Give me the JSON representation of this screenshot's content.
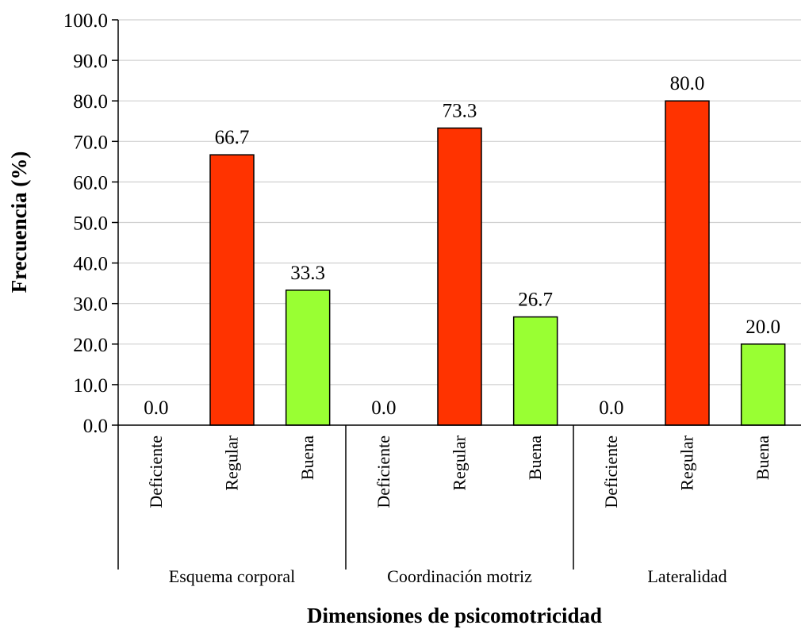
{
  "chart_data": {
    "type": "bar",
    "xlabel": "Dimensiones de psicomotricidad",
    "ylabel": "Frecuencia (%)",
    "ylim": [
      0,
      100
    ],
    "yticks": [
      "0.0",
      "10.0",
      "20.0",
      "30.0",
      "40.0",
      "50.0",
      "60.0",
      "70.0",
      "80.0",
      "90.0",
      "100.0"
    ],
    "grid": "horizontal",
    "legend": "none",
    "groups": [
      {
        "name": "Esquema corporal",
        "categories": [
          "Deficiente",
          "Regular",
          "Buena"
        ],
        "values": [
          0.0,
          66.7,
          33.3
        ],
        "labels": [
          "0.0",
          "66.7",
          "33.3"
        ]
      },
      {
        "name": "Coordinación motriz",
        "categories": [
          "Deficiente",
          "Regular",
          "Buena"
        ],
        "values": [
          0.0,
          73.3,
          26.7
        ],
        "labels": [
          "0.0",
          "73.3",
          "26.7"
        ]
      },
      {
        "name": "Lateralidad",
        "categories": [
          "Deficiente",
          "Regular",
          "Buena"
        ],
        "values": [
          0.0,
          80.0,
          20.0
        ],
        "labels": [
          "0.0",
          "80.0",
          "20.0"
        ]
      }
    ],
    "colors": {
      "Deficiente": "#4472c4",
      "Regular": "#ff3300",
      "Buena": "#99ff33",
      "grid": "#d0d0d0",
      "axis": "#000000"
    }
  }
}
